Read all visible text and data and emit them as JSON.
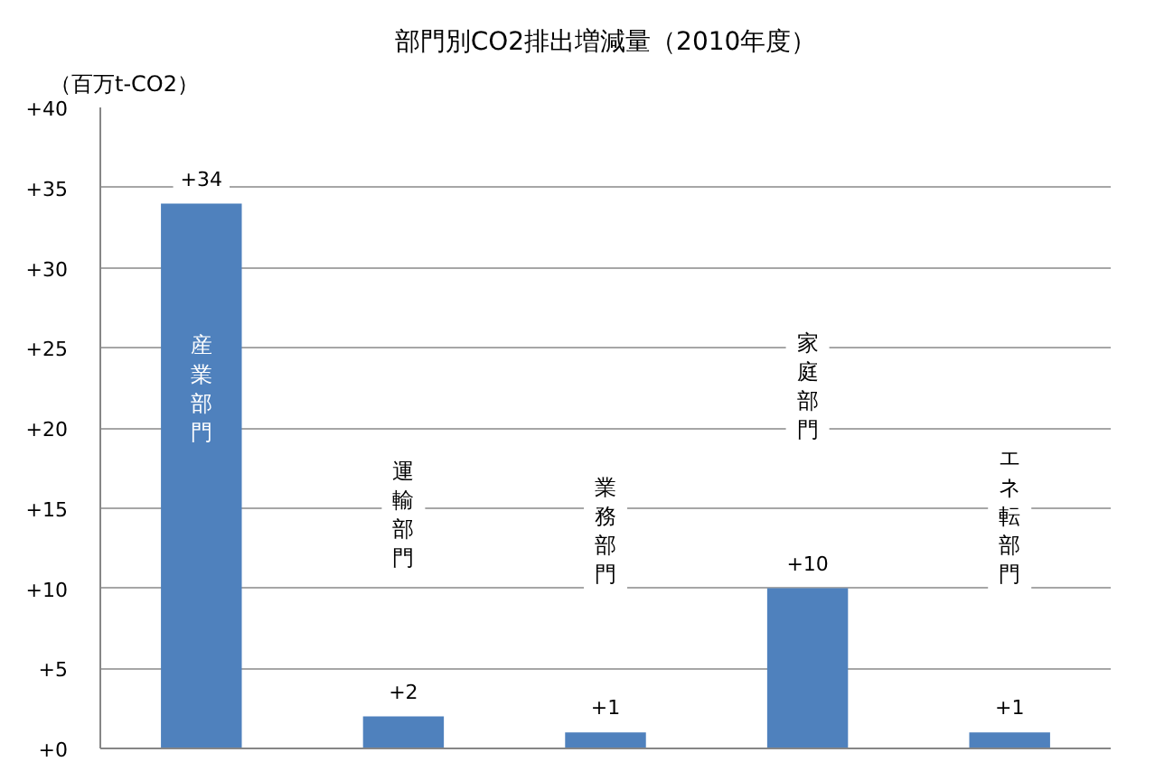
{
  "chart_data": {
    "type": "bar",
    "title": "部門別CO2排出増減量（2010年度）",
    "ylabel": "（百万t-CO2）",
    "categories": [
      "産業部門",
      "運輸部門",
      "業務部門",
      "家庭部門",
      "エネ転部門"
    ],
    "values": [
      34,
      2,
      1,
      10,
      1
    ],
    "color": "#4f81bd",
    "value_labels": [
      "+34",
      "+2",
      "+1",
      "+10",
      "+1"
    ],
    "ylim": [
      0,
      40
    ],
    "yticks": [
      {
        "value": 0,
        "label": "+0"
      },
      {
        "value": 5,
        "label": "+5"
      },
      {
        "value": 10,
        "label": "+10"
      },
      {
        "value": 15,
        "label": "+15"
      },
      {
        "value": 20,
        "label": "+20"
      },
      {
        "value": 25,
        "label": "+25"
      },
      {
        "value": 30,
        "label": "+30"
      },
      {
        "value": 35,
        "label": "+35"
      },
      {
        "value": 40,
        "label": "+40"
      }
    ],
    "grid": "y",
    "tick_labels": "y"
  }
}
